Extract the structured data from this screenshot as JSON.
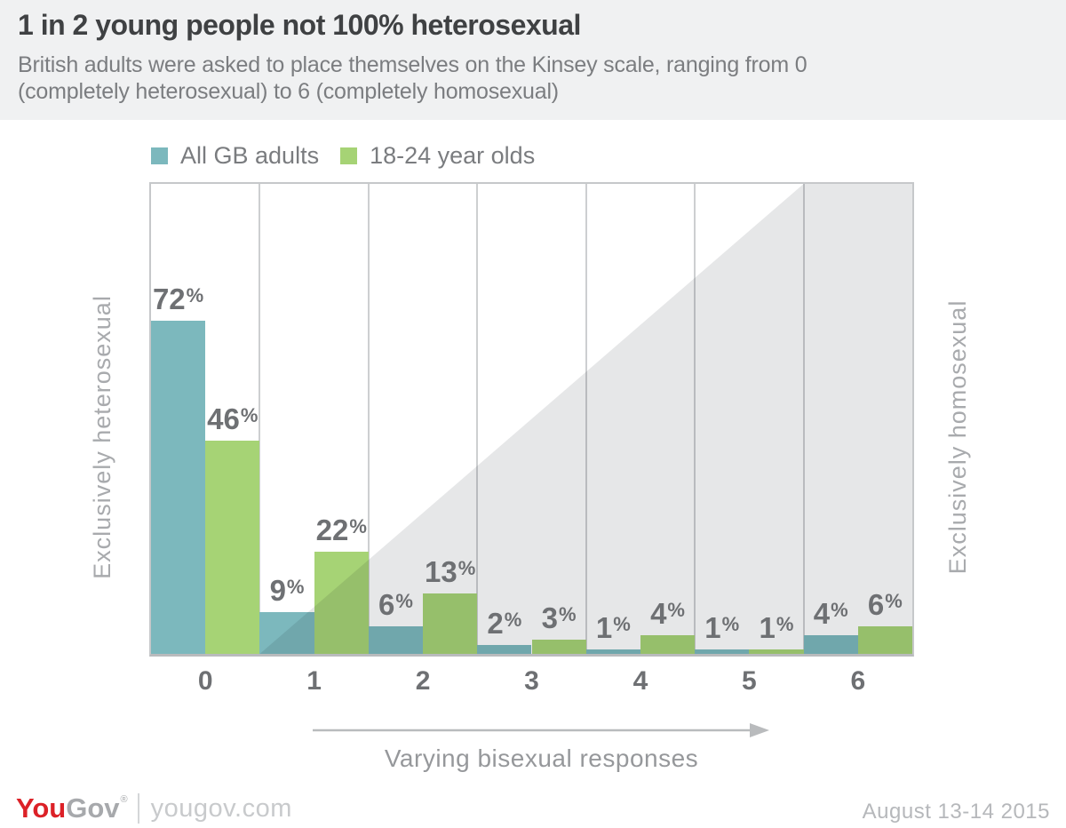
{
  "header": {
    "title": "1 in 2 young people not 100% heterosexual",
    "subtitle_line1": "British adults were asked to place themselves on the Kinsey scale, ranging from 0",
    "subtitle_line2": "(completely heterosexual) to 6 (completely homosexual)"
  },
  "chart_data": {
    "type": "bar",
    "title": "1 in 2 young people not 100% heterosexual",
    "categories": [
      "0",
      "1",
      "2",
      "3",
      "4",
      "5",
      "6"
    ],
    "series": [
      {
        "name": "All GB adults",
        "color": "#7cb8bd",
        "values": [
          72,
          9,
          6,
          2,
          1,
          1,
          4
        ]
      },
      {
        "name": "18-24 year olds",
        "color": "#a6d375",
        "values": [
          46,
          22,
          13,
          3,
          4,
          1,
          6
        ]
      }
    ],
    "value_suffix": "%",
    "ylim": [
      0,
      101.5
    ],
    "grid": "vertical-only",
    "legend_position": "top-left",
    "left_axis_label": "Exclusively heterosexual",
    "right_axis_label": "Exclusively homosexual",
    "x_annotation": "Varying bisexual responses",
    "triangle_region_color": "#e6e7e8",
    "triangle_gridline_span": [
      1,
      6
    ]
  },
  "footer": {
    "logo_you": "You",
    "logo_gov": "Gov",
    "logo_reg": "®",
    "site": "yougov.com",
    "date": "August 13-14 2015"
  }
}
